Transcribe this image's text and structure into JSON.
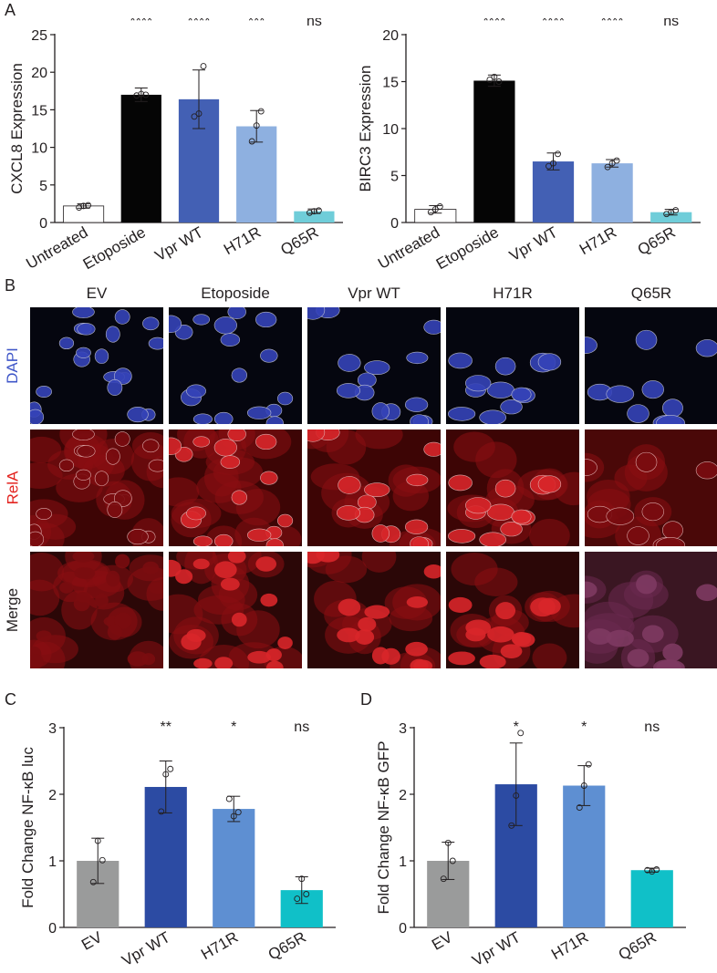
{
  "panels": {
    "a": "A",
    "b": "B",
    "c": "C",
    "d": "D"
  },
  "microscopy": {
    "columns": [
      "EV",
      "Etoposide",
      "Vpr WT",
      "H71R",
      "Q65R"
    ],
    "rows": [
      {
        "label": "DAPI",
        "color": "#3f56c8"
      },
      {
        "label": "RelA",
        "color": "#e3231f"
      },
      {
        "label": "Merge",
        "color": "#231f20"
      }
    ]
  },
  "chart_data": [
    {
      "type": "bar",
      "panel": "A",
      "ylabel": "CXCL8 Expression",
      "ylim": [
        0,
        25
      ],
      "yticks": [
        0,
        5,
        10,
        15,
        20,
        25
      ],
      "categories": [
        "Untreated",
        "Etoposide",
        "Vpr WT",
        "H71R",
        "Q65R"
      ],
      "values": [
        2.2,
        17.0,
        16.4,
        12.8,
        1.5
      ],
      "error": [
        0.3,
        0.9,
        3.9,
        2.1,
        0.3
      ],
      "points": [
        [
          2.0,
          2.2,
          2.3
        ],
        [
          16.9,
          17.1,
          17.0
        ],
        [
          14.1,
          14.5,
          20.8
        ],
        [
          10.8,
          12.9,
          14.8
        ],
        [
          1.3,
          1.5,
          1.6
        ]
      ],
      "significance": [
        "",
        "****",
        "****",
        "***",
        "ns"
      ],
      "colors": [
        "#ffffff",
        "#050505",
        "#4360b4",
        "#8eb0e0",
        "#6fcdd9"
      ]
    },
    {
      "type": "bar",
      "panel": "A",
      "ylabel": "BIRC3 Expression",
      "ylim": [
        0,
        20
      ],
      "yticks": [
        0,
        5,
        10,
        15,
        20
      ],
      "categories": [
        "Untreated",
        "Etoposide",
        "Vpr WT",
        "H71R",
        "Q65R"
      ],
      "values": [
        1.4,
        15.1,
        6.5,
        6.3,
        1.1
      ],
      "error": [
        0.4,
        0.6,
        0.9,
        0.4,
        0.3
      ],
      "points": [
        [
          1.1,
          1.4,
          1.7
        ],
        [
          15.2,
          15.5,
          15.0
        ],
        [
          6.0,
          6.3,
          7.3
        ],
        [
          5.9,
          6.3,
          6.6
        ],
        [
          0.9,
          1.1,
          1.3
        ]
      ],
      "significance": [
        "",
        "****",
        "****",
        "****",
        "ns"
      ],
      "colors": [
        "#ffffff",
        "#050505",
        "#4360b4",
        "#8eb0e0",
        "#6fcdd9"
      ]
    },
    {
      "type": "bar",
      "panel": "C",
      "ylabel": "Fold Change NF-κB luc",
      "ylim": [
        0,
        3
      ],
      "yticks": [
        0,
        1,
        2,
        3
      ],
      "categories": [
        "EV",
        "Vpr WT",
        "H71R",
        "Q65R"
      ],
      "values": [
        1.0,
        2.11,
        1.78,
        0.56
      ],
      "error": [
        0.34,
        0.39,
        0.19,
        0.2
      ],
      "points": [
        [
          0.68,
          1.3,
          1.01
        ],
        [
          1.74,
          2.3,
          2.38
        ],
        [
          1.93,
          1.67,
          1.73
        ],
        [
          0.43,
          0.73,
          0.5
        ]
      ],
      "significance": [
        "",
        "**",
        "*",
        "ns"
      ],
      "colors": [
        "#9a9b9b",
        "#2c4ba3",
        "#5e8fd2",
        "#10c0c8"
      ]
    },
    {
      "type": "bar",
      "panel": "D",
      "ylabel": "Fold Change NF-κB GFP",
      "ylim": [
        0,
        3
      ],
      "yticks": [
        0,
        1,
        2,
        3
      ],
      "categories": [
        "EV",
        "Vpr WT",
        "H71R",
        "Q65R"
      ],
      "values": [
        1.0,
        2.15,
        2.13,
        0.86
      ],
      "error": [
        0.28,
        0.62,
        0.3,
        0.03
      ],
      "points": [
        [
          0.73,
          1.27,
          1.0
        ],
        [
          1.53,
          1.98,
          2.92
        ],
        [
          1.8,
          2.13,
          2.45
        ],
        [
          0.86,
          0.84,
          0.87
        ]
      ],
      "significance": [
        "",
        "*",
        "*",
        "ns"
      ],
      "colors": [
        "#9a9b9b",
        "#2c4ba3",
        "#5e8fd2",
        "#10c0c8"
      ]
    }
  ]
}
